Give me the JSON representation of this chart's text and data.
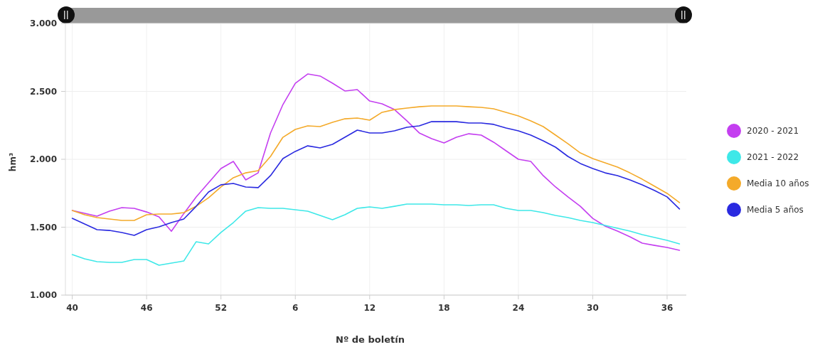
{
  "chart_data": {
    "type": "line",
    "xlabel": "Nº de boletín",
    "ylabel": "hm³",
    "categories": [
      "40",
      null,
      null,
      null,
      null,
      null,
      "46",
      null,
      null,
      null,
      null,
      null,
      "52",
      null,
      null,
      null,
      null,
      null,
      "6",
      null,
      null,
      null,
      null,
      null,
      "12",
      null,
      null,
      null,
      null,
      null,
      "18",
      null,
      null,
      null,
      null,
      null,
      "24",
      null,
      null,
      null,
      null,
      null,
      "30",
      null,
      null,
      null,
      null,
      null,
      "36",
      null
    ],
    "series": [
      {
        "name": "2020 - 2021",
        "color": "#c43ff0",
        "values": [
          1623,
          1602,
          1581,
          1618,
          1644,
          1639,
          1612,
          1576,
          1470,
          1600,
          1723,
          1827,
          1932,
          1984,
          1848,
          1900,
          2194,
          2403,
          2560,
          2628,
          2613,
          2560,
          2503,
          2513,
          2429,
          2408,
          2366,
          2283,
          2194,
          2152,
          2120,
          2162,
          2188,
          2178,
          2126,
          2063,
          2000,
          1984,
          1880,
          1796,
          1723,
          1654,
          1565,
          1508,
          1471,
          1429,
          1382,
          1366,
          1351,
          1330
        ]
      },
      {
        "name": "2021 - 2022",
        "color": "#3ee8e8",
        "values": [
          1298,
          1267,
          1246,
          1241,
          1241,
          1262,
          1262,
          1220,
          1236,
          1251,
          1393,
          1377,
          1461,
          1534,
          1618,
          1644,
          1639,
          1639,
          1628,
          1618,
          1586,
          1555,
          1592,
          1639,
          1649,
          1639,
          1654,
          1670,
          1670,
          1670,
          1665,
          1665,
          1660,
          1665,
          1665,
          1639,
          1623,
          1623,
          1607,
          1586,
          1571,
          1550,
          1534,
          1513,
          1492,
          1471,
          1445,
          1424,
          1403,
          1377
        ]
      },
      {
        "name": "Media 10 años",
        "color": "#f4aa2a",
        "values": [
          1623,
          1592,
          1571,
          1560,
          1550,
          1550,
          1592,
          1597,
          1597,
          1607,
          1654,
          1717,
          1796,
          1864,
          1900,
          1916,
          2021,
          2162,
          2220,
          2246,
          2241,
          2272,
          2298,
          2304,
          2288,
          2346,
          2366,
          2377,
          2387,
          2393,
          2393,
          2393,
          2387,
          2382,
          2372,
          2346,
          2319,
          2283,
          2241,
          2178,
          2115,
          2047,
          2005,
          1974,
          1942,
          1900,
          1853,
          1801,
          1749,
          1681
        ]
      },
      {
        "name": "Media 5 años",
        "color": "#2a2ae0",
        "values": [
          1565,
          1524,
          1482,
          1476,
          1461,
          1440,
          1482,
          1503,
          1534,
          1560,
          1654,
          1759,
          1812,
          1822,
          1796,
          1791,
          1880,
          2005,
          2058,
          2099,
          2084,
          2110,
          2162,
          2215,
          2194,
          2194,
          2209,
          2236,
          2246,
          2277,
          2277,
          2277,
          2267,
          2267,
          2257,
          2230,
          2209,
          2178,
          2136,
          2089,
          2021,
          1969,
          1932,
          1900,
          1880,
          1848,
          1812,
          1770,
          1723,
          1634
        ]
      }
    ],
    "ylim": [
      1000,
      3000
    ],
    "yticks": [
      {
        "value": 1000,
        "label": "1.000"
      },
      {
        "value": 1500,
        "label": "1.500"
      },
      {
        "value": 2000,
        "label": "2.000"
      },
      {
        "value": 2500,
        "label": "2.500"
      },
      {
        "value": 3000,
        "label": "3.000"
      }
    ],
    "grid": true,
    "legend": "right",
    "line_style": "solid",
    "marker": "none"
  }
}
